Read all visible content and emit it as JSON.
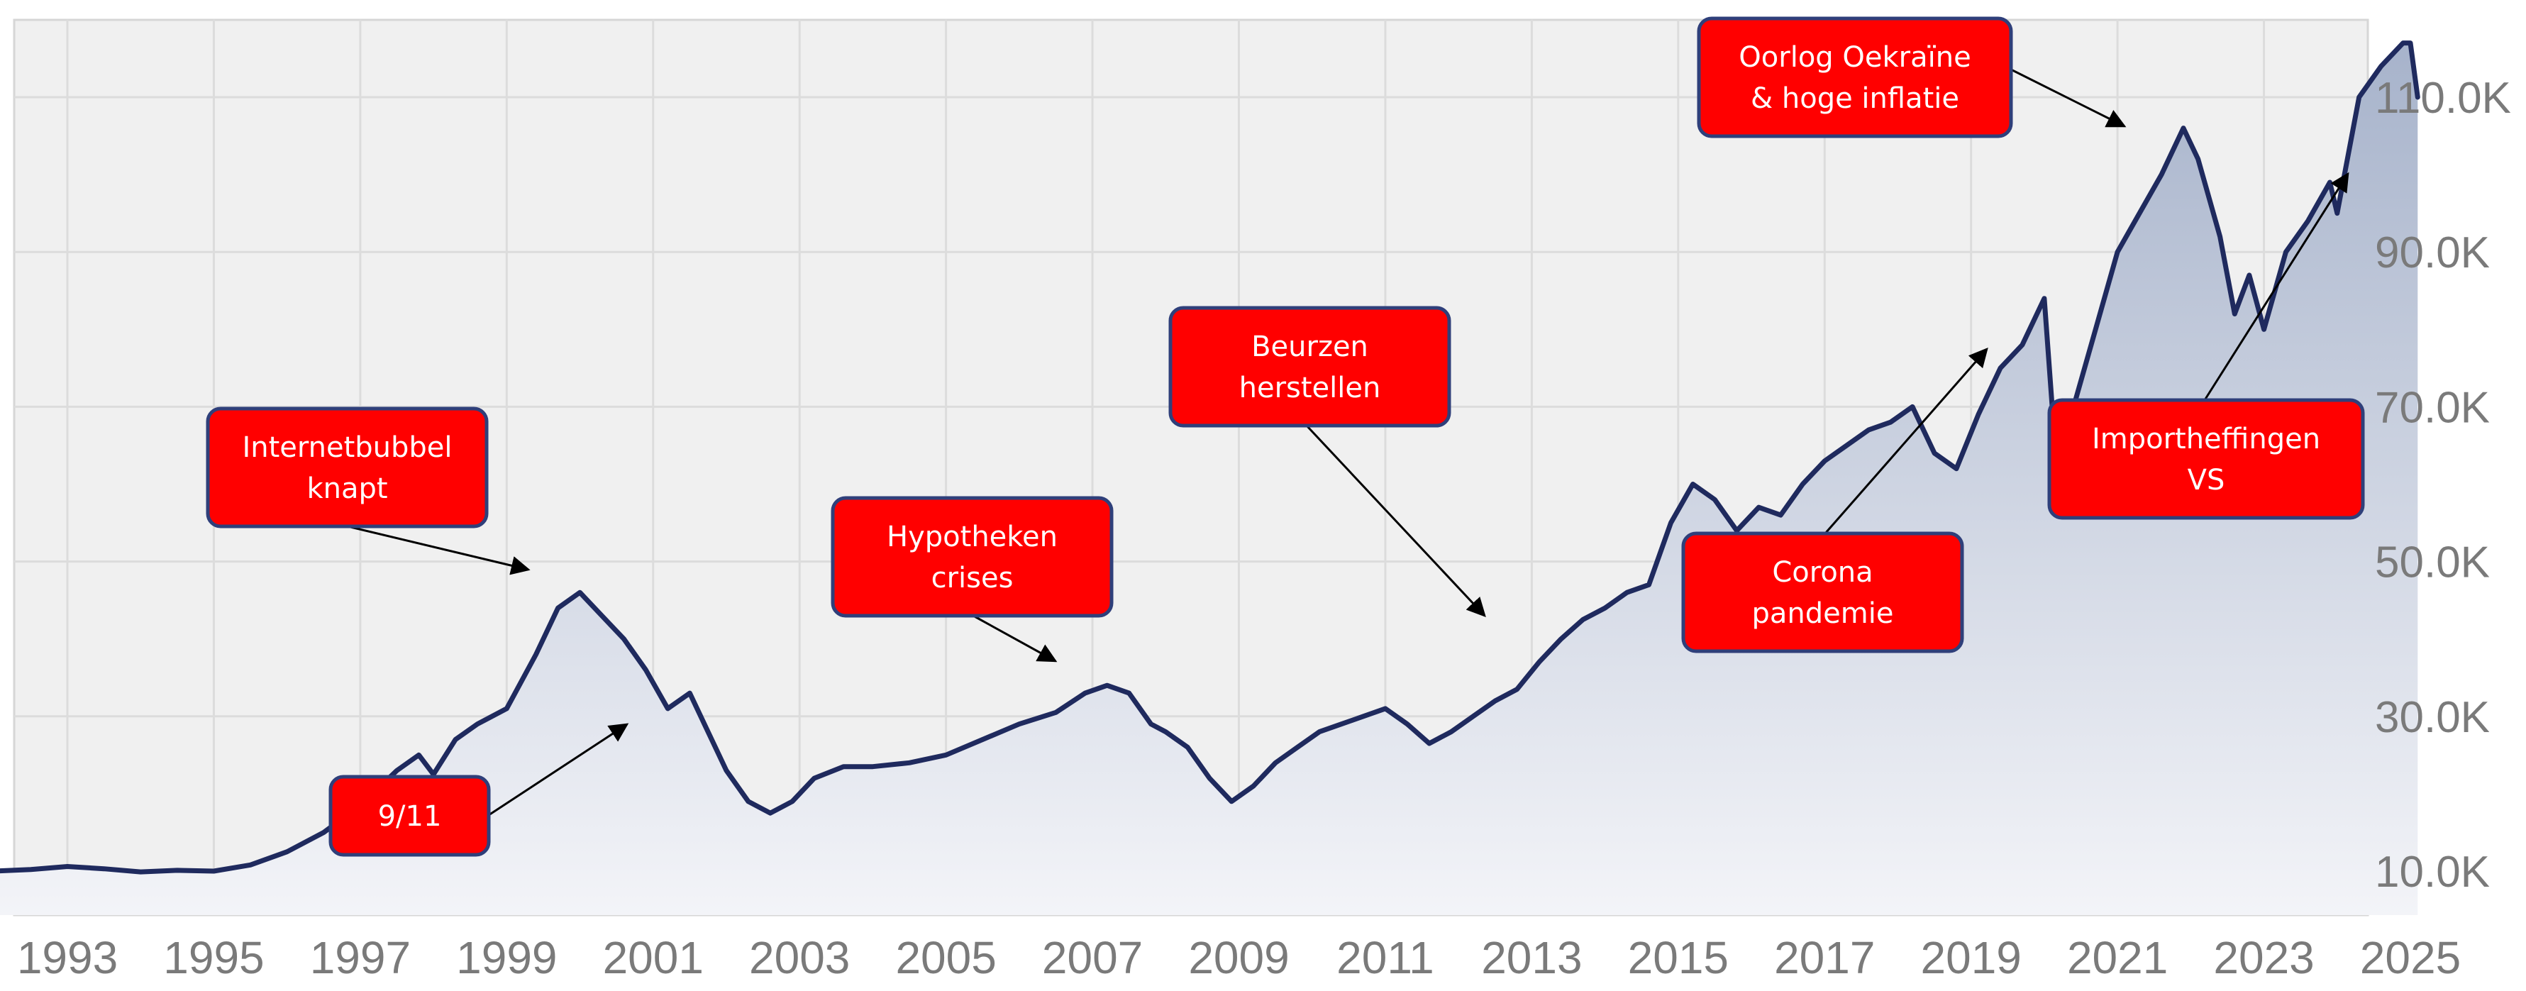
{
  "chart_data": {
    "type": "area",
    "title": "",
    "xlabel": "",
    "ylabel": "",
    "xlim": [
      1992.0,
      2025.0
    ],
    "ylim": [
      5000,
      120000
    ],
    "x_ticks": [
      1993,
      1995,
      1997,
      1999,
      2001,
      2003,
      2005,
      2007,
      2009,
      2011,
      2013,
      2015,
      2017,
      2019,
      2021,
      2023,
      2025
    ],
    "x_tick_labels": [
      "1993",
      "1995",
      "1997",
      "1999",
      "2001",
      "2003",
      "2005",
      "2007",
      "2009",
      "2011",
      "2013",
      "2015",
      "2017",
      "2019",
      "2021",
      "2023",
      "2025"
    ],
    "y_ticks": [
      10000,
      30000,
      50000,
      70000,
      90000,
      110000
    ],
    "y_tick_labels": [
      "10.0K",
      "30.0K",
      "50.0K",
      "70.0K",
      "90.0K",
      "110.0K"
    ],
    "grid": true,
    "colors": {
      "line": "#1f2a5e",
      "fill_top": "#a7b3cb",
      "fill_bottom": "#f3f4f8",
      "plot_bg": "#f0f0f0",
      "grid": "#dcdcdc",
      "callout_fill": "#ff0000",
      "callout_border": "#2f3f7a",
      "arrow": "#000000"
    },
    "series": [
      {
        "x": [
          1992.0,
          1992.5,
          1993.0,
          1993.5,
          1994.0,
          1994.5,
          1995.0,
          1995.5,
          1996.0,
          1996.5,
          1997.0,
          1997.5,
          1997.8,
          1998.0,
          1998.3,
          1998.6,
          1999.0,
          1999.4,
          1999.7,
          2000.0,
          2000.3,
          2000.6,
          2000.9,
          2001.2,
          2001.5,
          2001.7,
          2002.0,
          2002.3,
          2002.6,
          2002.9,
          2003.2,
          2003.6,
          2004.0,
          2004.5,
          2005.0,
          2005.5,
          2006.0,
          2006.5,
          2006.9,
          2007.2,
          2007.5,
          2007.8,
          2008.0,
          2008.3,
          2008.6,
          2008.9,
          2009.2,
          2009.5,
          2009.8,
          2010.1,
          2010.4,
          2010.7,
          2011.0,
          2011.3,
          2011.6,
          2011.9,
          2012.2,
          2012.5,
          2012.8,
          2013.1,
          2013.4,
          2013.7,
          2014.0,
          2014.3,
          2014.6,
          2014.9,
          2015.2,
          2015.5,
          2015.8,
          2016.1,
          2016.4,
          2016.7,
          2017.0,
          2017.3,
          2017.6,
          2017.9,
          2018.2,
          2018.5,
          2018.8,
          2019.1,
          2019.4,
          2019.7,
          2020.0,
          2020.2,
          2020.4,
          2020.7,
          2021.0,
          2021.3,
          2021.6,
          2021.9,
          2022.1,
          2022.4,
          2022.6,
          2022.8,
          2023.0,
          2023.3,
          2023.6,
          2023.9,
          2024.0,
          2024.3,
          2024.6,
          2024.9,
          2025.0,
          2025.1
        ],
        "y": [
          10000,
          10200,
          10600,
          10300,
          9900,
          10100,
          10000,
          10800,
          12500,
          15000,
          18500,
          23000,
          25000,
          22500,
          27000,
          29000,
          31000,
          38000,
          44000,
          46000,
          43000,
          40000,
          36000,
          31000,
          33000,
          29000,
          23000,
          19000,
          17500,
          19000,
          22000,
          23500,
          23500,
          24000,
          25000,
          27000,
          29000,
          30500,
          33000,
          34000,
          33000,
          29000,
          28000,
          26000,
          22000,
          19000,
          21000,
          24000,
          26000,
          28000,
          29000,
          30000,
          31000,
          29000,
          26500,
          28000,
          30000,
          32000,
          33500,
          37000,
          40000,
          42500,
          44000,
          46000,
          47000,
          55000,
          60000,
          58000,
          54000,
          57000,
          56000,
          60000,
          63000,
          65000,
          67000,
          68000,
          70000,
          64000,
          62000,
          69000,
          75000,
          78000,
          84000,
          58000,
          70000,
          80000,
          90000,
          95000,
          100000,
          106000,
          102000,
          92000,
          82000,
          87000,
          80000,
          90000,
          94000,
          99000,
          95000,
          110000,
          114000,
          117000,
          117000,
          110000
        ]
      }
    ],
    "annotations": [
      {
        "lines": [
          "Internetbubbel",
          "knapt"
        ]
      },
      {
        "lines": [
          "9/11"
        ]
      },
      {
        "lines": [
          "Hypotheken",
          "crises"
        ]
      },
      {
        "lines": [
          "Beurzen",
          "herstellen"
        ]
      },
      {
        "lines": [
          "Corona",
          "pandemie"
        ]
      },
      {
        "lines": [
          "Oorlog Oekraïne",
          "& hoge inflatie"
        ]
      },
      {
        "lines": [
          "Importheffingen",
          "VS"
        ]
      }
    ]
  }
}
